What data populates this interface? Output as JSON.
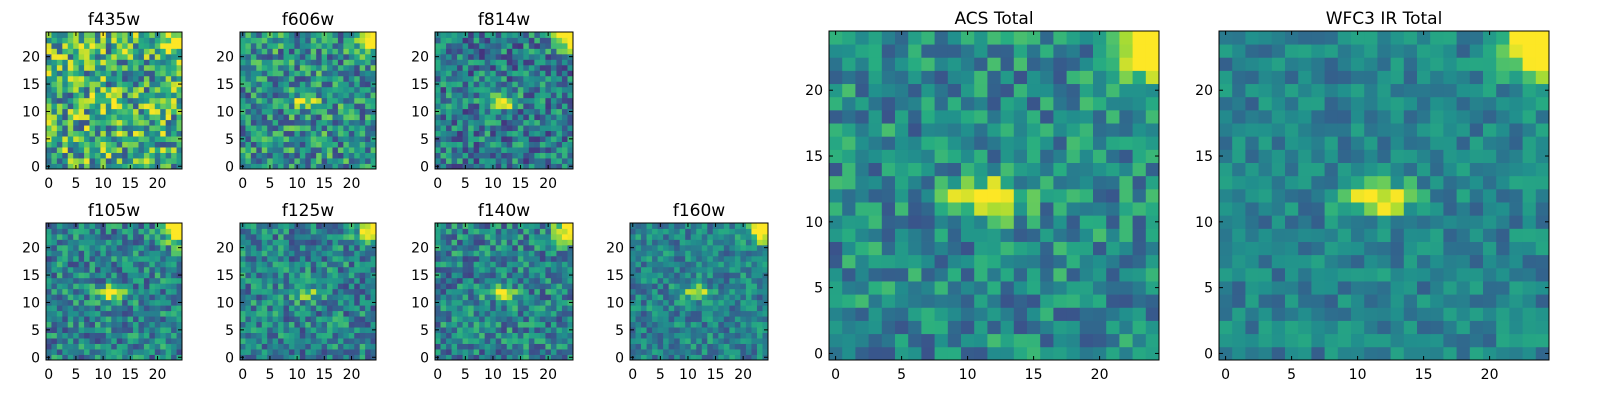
{
  "colormap": [
    "#440154",
    "#472c7a",
    "#3b518b",
    "#2c718e",
    "#21908d",
    "#27ad81",
    "#5cc863",
    "#aadc32",
    "#fde725"
  ],
  "chart_data": [
    {
      "type": "heatmap",
      "title": "f435w",
      "xticks": [
        0,
        5,
        10,
        15,
        20
      ],
      "yticks": [
        0,
        5,
        10,
        15,
        20
      ],
      "xlim": [
        0,
        25
      ],
      "ylim": [
        0,
        25
      ],
      "grid_size": 25,
      "grid": false,
      "seed": 11,
      "noise": 0.75,
      "peak": 0.2,
      "corner": 0.55,
      "base": 0.62
    },
    {
      "type": "heatmap",
      "title": "f606w",
      "xticks": [
        0,
        5,
        10,
        15,
        20
      ],
      "yticks": [
        0,
        5,
        10,
        15,
        20
      ],
      "xlim": [
        0,
        25
      ],
      "ylim": [
        0,
        25
      ],
      "grid_size": 25,
      "grid": false,
      "seed": 23,
      "noise": 0.6,
      "peak": 0.45,
      "corner": 0.75,
      "base": 0.5
    },
    {
      "type": "heatmap",
      "title": "f814w",
      "xticks": [
        0,
        5,
        10,
        15,
        20
      ],
      "yticks": [
        0,
        5,
        10,
        15,
        20
      ],
      "xlim": [
        0,
        25
      ],
      "ylim": [
        0,
        25
      ],
      "grid_size": 25,
      "grid": false,
      "seed": 37,
      "noise": 0.55,
      "peak": 0.65,
      "corner": 0.85,
      "base": 0.42
    },
    {
      "type": "heatmap",
      "title": "f105w",
      "xticks": [
        0,
        5,
        10,
        15,
        20
      ],
      "yticks": [
        0,
        5,
        10,
        15,
        20
      ],
      "xlim": [
        0,
        25
      ],
      "ylim": [
        0,
        25
      ],
      "grid_size": 25,
      "grid": false,
      "seed": 41,
      "noise": 0.5,
      "peak": 0.6,
      "corner": 0.8,
      "base": 0.45
    },
    {
      "type": "heatmap",
      "title": "f125w",
      "xticks": [
        0,
        5,
        10,
        15,
        20
      ],
      "yticks": [
        0,
        5,
        10,
        15,
        20
      ],
      "xlim": [
        0,
        25
      ],
      "ylim": [
        0,
        25
      ],
      "grid_size": 25,
      "grid": false,
      "seed": 53,
      "noise": 0.5,
      "peak": 0.35,
      "corner": 0.8,
      "base": 0.45
    },
    {
      "type": "heatmap",
      "title": "f140w",
      "xticks": [
        0,
        5,
        10,
        15,
        20
      ],
      "yticks": [
        0,
        5,
        10,
        15,
        20
      ],
      "xlim": [
        0,
        25
      ],
      "ylim": [
        0,
        25
      ],
      "grid_size": 25,
      "grid": false,
      "seed": 67,
      "noise": 0.5,
      "peak": 0.5,
      "corner": 0.8,
      "base": 0.45
    },
    {
      "type": "heatmap",
      "title": "f160w",
      "xticks": [
        0,
        5,
        10,
        15,
        20
      ],
      "yticks": [
        0,
        5,
        10,
        15,
        20
      ],
      "xlim": [
        0,
        25
      ],
      "ylim": [
        0,
        25
      ],
      "grid_size": 25,
      "grid": false,
      "seed": 79,
      "noise": 0.4,
      "peak": 0.45,
      "corner": 0.85,
      "base": 0.45
    },
    {
      "type": "heatmap",
      "title": "ACS Total",
      "xticks": [
        0,
        5,
        10,
        15,
        20
      ],
      "yticks": [
        0,
        5,
        10,
        15,
        20
      ],
      "xlim": [
        0,
        25
      ],
      "ylim": [
        0,
        25
      ],
      "grid_size": 25,
      "grid": false,
      "seed": 91,
      "noise": 0.45,
      "peak": 0.75,
      "corner": 0.95,
      "base": 0.48
    },
    {
      "type": "heatmap",
      "title": "WFC3 IR Total",
      "xticks": [
        0,
        5,
        10,
        15,
        20
      ],
      "yticks": [
        0,
        5,
        10,
        15,
        20
      ],
      "xlim": [
        0,
        25
      ],
      "ylim": [
        0,
        25
      ],
      "grid_size": 25,
      "grid": false,
      "seed": 103,
      "noise": 0.3,
      "peak": 0.6,
      "corner": 0.95,
      "base": 0.45
    }
  ]
}
